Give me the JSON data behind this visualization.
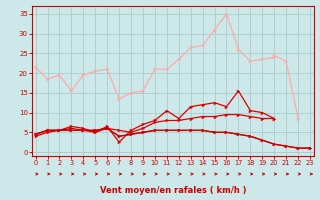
{
  "x": [
    0,
    1,
    2,
    3,
    4,
    5,
    6,
    7,
    8,
    9,
    10,
    11,
    12,
    13,
    14,
    15,
    16,
    17,
    18,
    19,
    20,
    21,
    22,
    23
  ],
  "line1": [
    21.5,
    18.5,
    19.5,
    15.5,
    19.5,
    20.5,
    21.0,
    13.5,
    15.0,
    15.5,
    21.0,
    21.0,
    23.5,
    26.5,
    27.0,
    31.0,
    35.0,
    26.0,
    23.0,
    23.5,
    24.0,
    null,
    null,
    null
  ],
  "line3": [
    null,
    null,
    null,
    null,
    null,
    null,
    null,
    null,
    null,
    null,
    null,
    null,
    null,
    null,
    null,
    null,
    null,
    null,
    null,
    null,
    24.5,
    23.0,
    8.5,
    null
  ],
  "line4": [
    4.5,
    5.5,
    5.5,
    6.5,
    6.0,
    5.0,
    6.5,
    2.5,
    5.5,
    7.0,
    8.0,
    10.5,
    8.5,
    11.5,
    12.0,
    12.5,
    11.5,
    15.5,
    10.5,
    10.0,
    8.5,
    null,
    null,
    null
  ],
  "line5": [
    4.0,
    5.0,
    5.5,
    5.5,
    5.5,
    5.0,
    6.0,
    5.5,
    5.0,
    6.0,
    7.5,
    8.0,
    8.0,
    8.5,
    9.0,
    9.0,
    9.5,
    9.5,
    9.0,
    8.5,
    8.5,
    null,
    null,
    null
  ],
  "line6": [
    4.5,
    5.5,
    5.5,
    5.5,
    5.5,
    5.5,
    6.0,
    4.0,
    4.5,
    5.0,
    5.5,
    5.5,
    5.5,
    5.5,
    5.5,
    5.0,
    5.0,
    4.5,
    4.0,
    3.0,
    2.0,
    1.5,
    1.0,
    1.0
  ],
  "line7": [
    4.5,
    5.5,
    5.5,
    6.0,
    5.5,
    5.5,
    6.0,
    4.0,
    4.5,
    5.0,
    5.5,
    5.5,
    5.5,
    5.5,
    5.5,
    5.0,
    5.0,
    4.5,
    4.0,
    3.0,
    2.0,
    1.5,
    1.0,
    1.0
  ],
  "bg_color": "#cce8e8",
  "grid_color": "#aacccc",
  "line1_color": "#ffaaaa",
  "line4_color": "#dd0000",
  "line5_color": "#dd0000",
  "line6_color": "#cc0000",
  "line7_color": "#cc0000",
  "arrow_color": "#cc0000",
  "xlabel": "Vent moyen/en rafales ( km/h )",
  "yticks": [
    0,
    5,
    10,
    15,
    20,
    25,
    30,
    35
  ],
  "xticks": [
    0,
    1,
    2,
    3,
    4,
    5,
    6,
    7,
    8,
    9,
    10,
    11,
    12,
    13,
    14,
    15,
    16,
    17,
    18,
    19,
    20,
    21,
    22,
    23
  ],
  "ylim": [
    -1,
    37
  ],
  "xlim": [
    -0.3,
    23.3
  ]
}
